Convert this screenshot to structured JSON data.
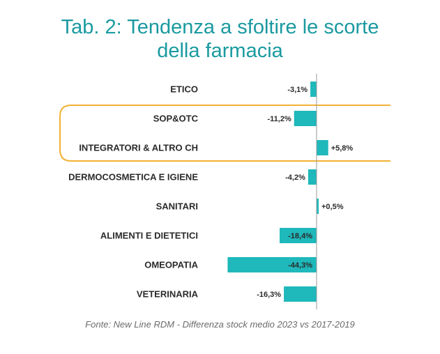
{
  "title_line1": "Tab. 2: Tendenza a sfoltire le scorte",
  "title_line2": "della farmacia",
  "source": "Fonte: New Line RDM - Differenza stock medio 2023 vs 2017-2019",
  "colors": {
    "bar": "#1fb8bb",
    "title": "#1a9aa0",
    "highlight": "#f2b134",
    "axis": "#9a9a9a",
    "text": "#2b2b2b"
  },
  "chart_data": {
    "type": "bar",
    "orientation": "horizontal",
    "categories": [
      "ETICO",
      "SOP&OTC",
      "INTEGRATORI & ALTRO CH",
      "DERMOCOSMETICA E IGIENE",
      "SANITARI",
      "ALIMENTI E DIETETICI",
      "OMEOPATIA",
      "VETERINARIA"
    ],
    "values": [
      -3.1,
      -11.2,
      5.8,
      -4.2,
      0.5,
      -18.4,
      -44.3,
      -16.3
    ],
    "value_labels": [
      "-3,1%",
      "-11,2%",
      "+5,8%",
      "-4,2%",
      "+0,5%",
      "-18,4%",
      "-44,3%",
      "-16,3%"
    ],
    "label_inside": [
      false,
      false,
      false,
      false,
      false,
      true,
      true,
      false
    ],
    "highlighted_group": [
      "SOP&OTC",
      "INTEGRATORI & ALTRO CH"
    ],
    "grid": false
  }
}
